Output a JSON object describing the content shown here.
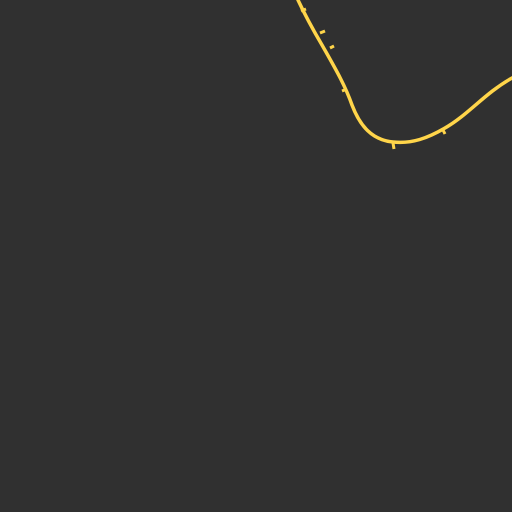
{
  "map": {
    "background_color": "#303030",
    "route": {
      "type": "rail-line",
      "color": "#ffd54a",
      "tick_count": 6
    }
  }
}
